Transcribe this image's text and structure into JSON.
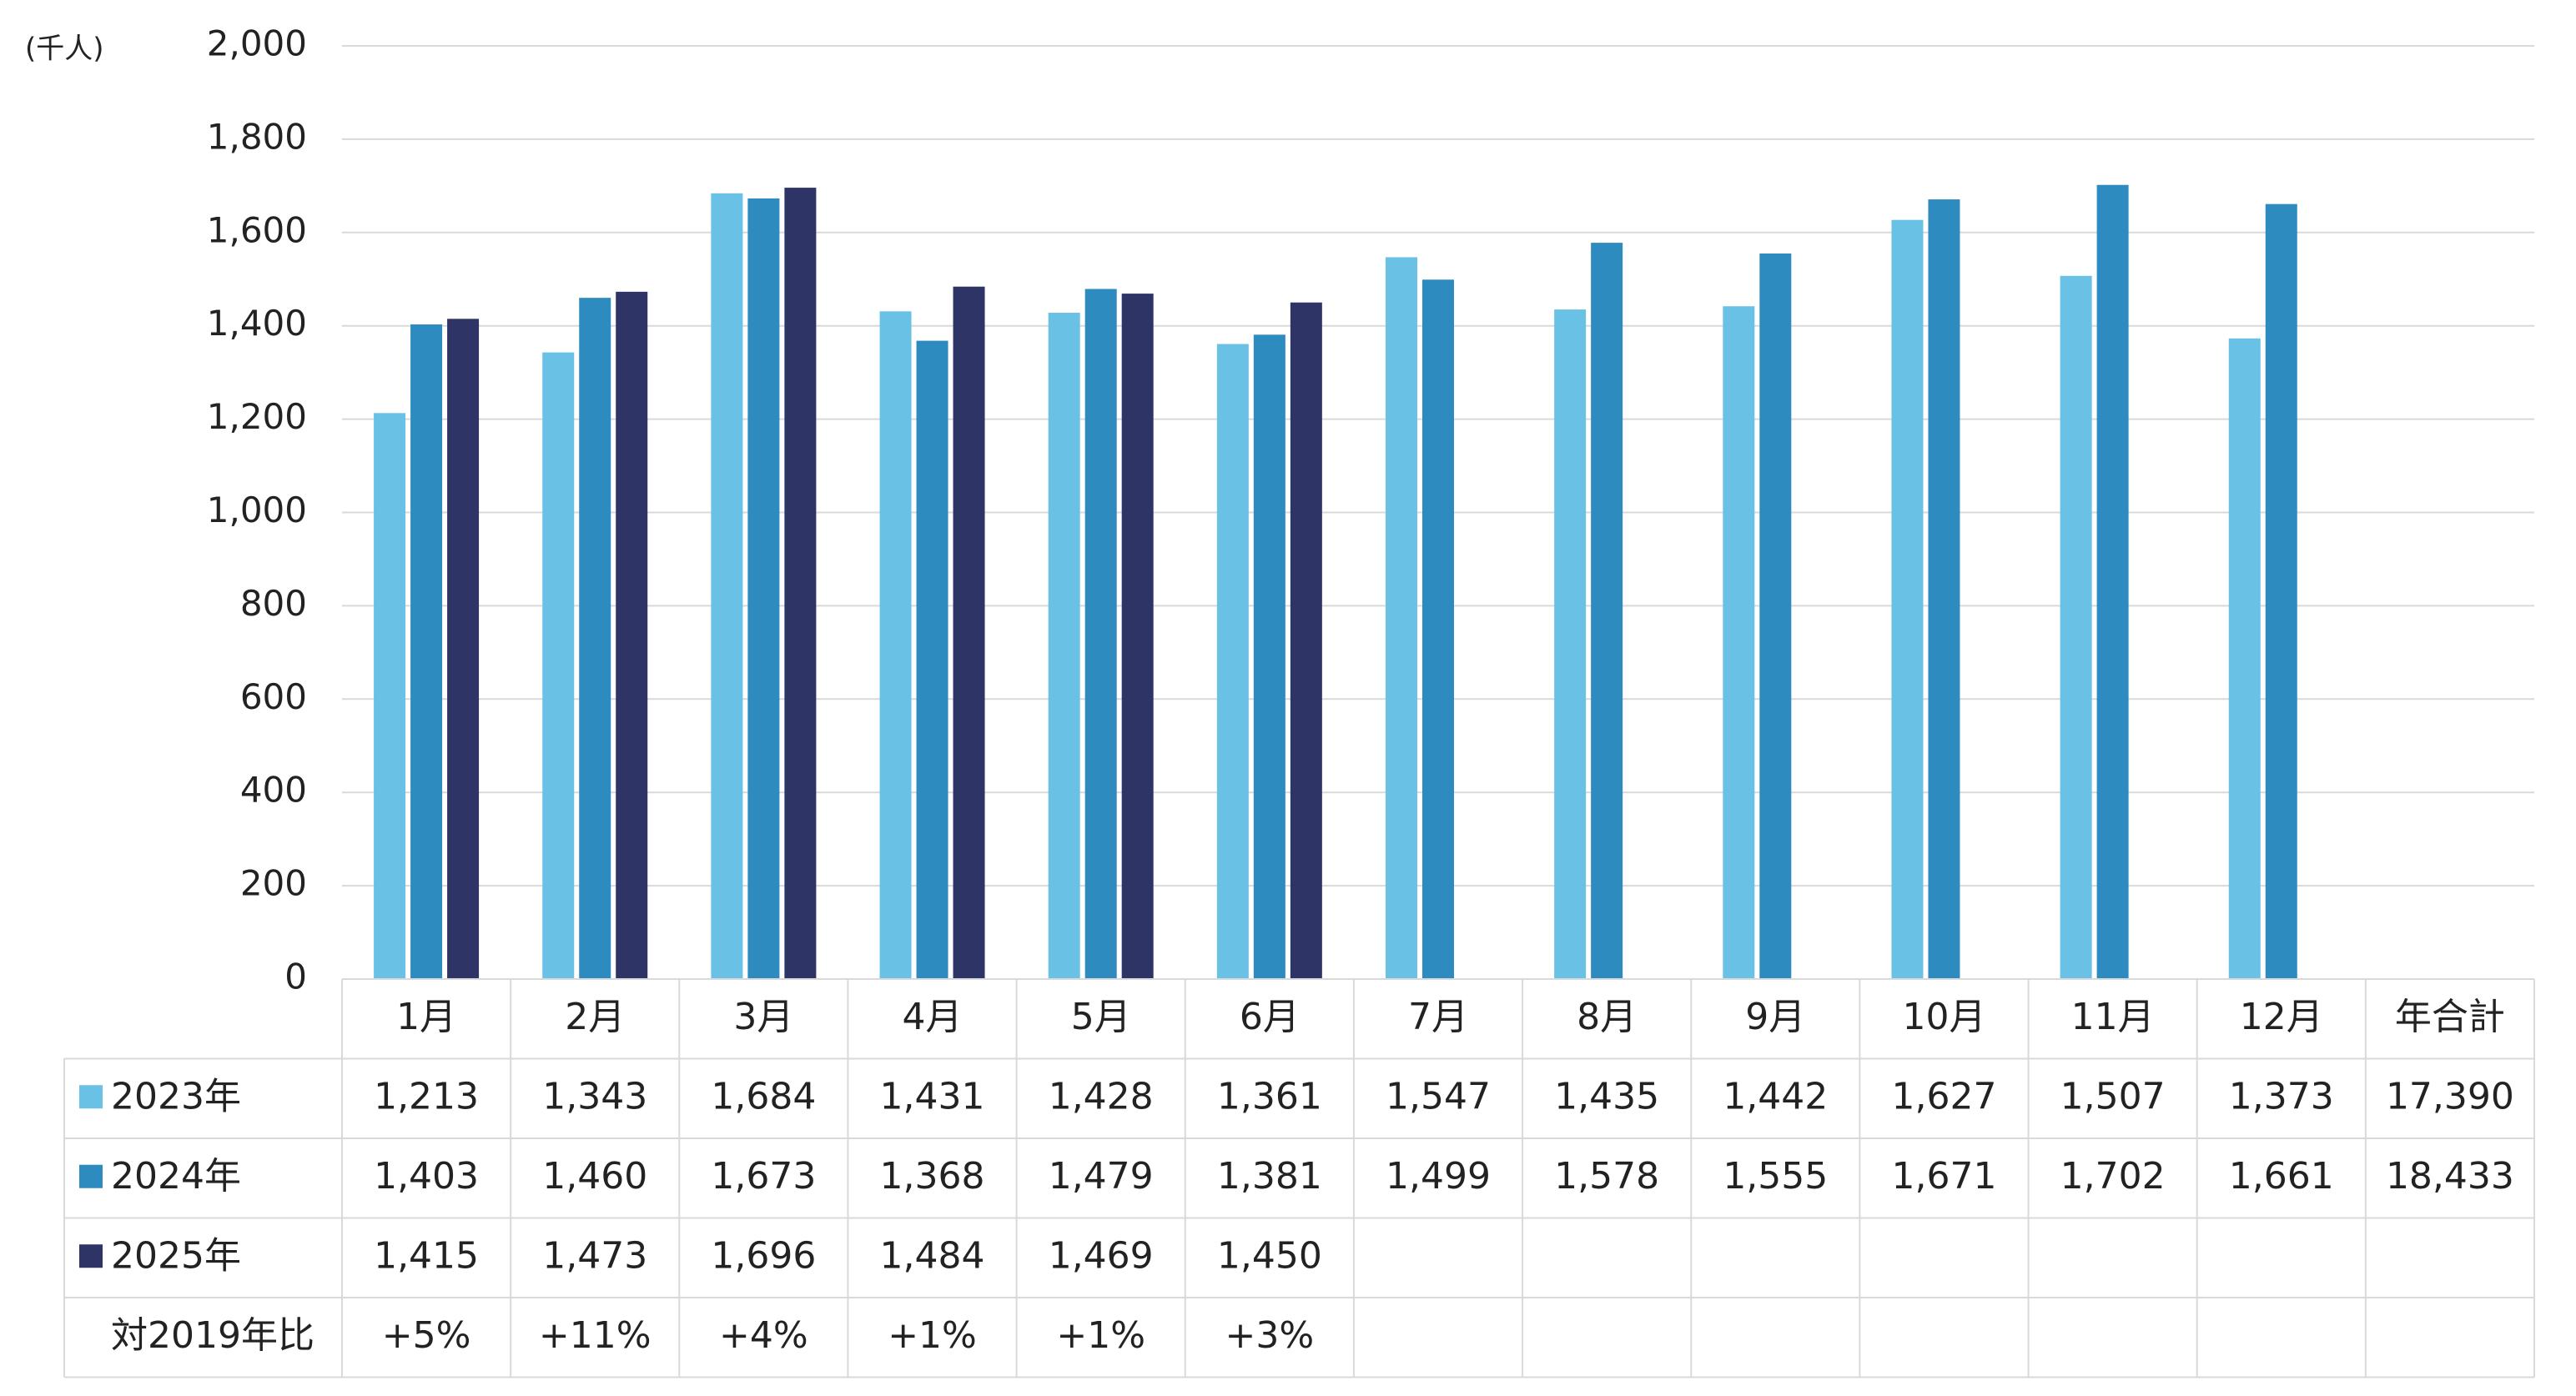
{
  "chart_data": {
    "type": "bar",
    "unit_label": "(千人)",
    "categories": [
      "1月",
      "2月",
      "3月",
      "4月",
      "5月",
      "6月",
      "7月",
      "8月",
      "9月",
      "10月",
      "11月",
      "12月"
    ],
    "total_header": "年合計",
    "series": [
      {
        "name": "2023年",
        "color": "#6ac1e6",
        "values": [
          1213,
          1343,
          1684,
          1431,
          1428,
          1361,
          1547,
          1435,
          1442,
          1627,
          1507,
          1373
        ],
        "value_labels": [
          "1,213",
          "1,343",
          "1,684",
          "1,431",
          "1,428",
          "1,361",
          "1,547",
          "1,435",
          "1,442",
          "1,627",
          "1,507",
          "1,373"
        ],
        "total": {
          "value": 17390,
          "label": "17,390"
        }
      },
      {
        "name": "2024年",
        "color": "#2e8bbf",
        "values": [
          1403,
          1460,
          1673,
          1368,
          1479,
          1381,
          1499,
          1578,
          1555,
          1671,
          1702,
          1661
        ],
        "value_labels": [
          "1,403",
          "1,460",
          "1,673",
          "1,368",
          "1,479",
          "1,381",
          "1,499",
          "1,578",
          "1,555",
          "1,671",
          "1,702",
          "1,661"
        ],
        "total": {
          "value": 18433,
          "label": "18,433"
        }
      },
      {
        "name": "2025年",
        "color": "#2e3466",
        "values": [
          1415,
          1473,
          1696,
          1484,
          1469,
          1450,
          null,
          null,
          null,
          null,
          null,
          null
        ],
        "value_labels": [
          "1,415",
          "1,473",
          "1,696",
          "1,484",
          "1,469",
          "1,450",
          null,
          null,
          null,
          null,
          null,
          null
        ]
      }
    ],
    "ratio": {
      "name": "対2019年比",
      "values": [
        5,
        11,
        4,
        1,
        1,
        3,
        null,
        null,
        null,
        null,
        null,
        null
      ],
      "value_labels": [
        "+5%",
        "+11%",
        "+4%",
        "+1%",
        "+1%",
        "+3%",
        null,
        null,
        null,
        null,
        null,
        null
      ]
    },
    "ylim": [
      0,
      2000
    ],
    "yticks": [
      0,
      200,
      400,
      600,
      800,
      {
        "value": 1000,
        "label": "1,000"
      },
      {
        "value": 1200,
        "label": "1,200"
      },
      {
        "value": 1400,
        "label": "1,400"
      },
      {
        "value": 1600,
        "label": "1,600"
      },
      {
        "value": 1800,
        "label": "1,800"
      },
      {
        "value": 2000,
        "label": "2,000"
      }
    ],
    "grid": true
  }
}
